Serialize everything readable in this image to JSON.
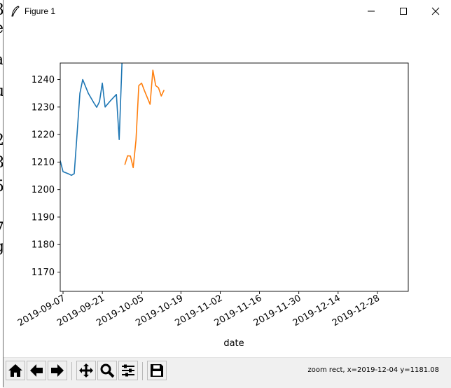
{
  "window": {
    "title": "Figure 1"
  },
  "toolbar": {
    "buttons": [
      {
        "icon": "home-icon"
      },
      {
        "icon": "back-arrow-icon"
      },
      {
        "icon": "forward-arrow-icon"
      },
      {
        "icon": "pan-icon"
      },
      {
        "icon": "zoom-icon"
      },
      {
        "icon": "subplots-config-icon"
      },
      {
        "icon": "save-icon"
      }
    ],
    "status": "zoom rect, x=2019-12-04 y=1181.08"
  },
  "chart_data": {
    "type": "line",
    "title": "",
    "xlabel": "date",
    "ylabel": "",
    "x_ticks": [
      "2019-09-07",
      "2019-09-21",
      "2019-10-05",
      "2019-10-19",
      "2019-11-02",
      "2019-11-16",
      "2019-11-30",
      "2019-12-14",
      "2019-12-28"
    ],
    "y_ticks": [
      1170,
      1180,
      1190,
      1200,
      1210,
      1220,
      1230,
      1240
    ],
    "xlim": [
      "2019-09-06",
      "2020-01-08"
    ],
    "ylim": [
      1163,
      1246
    ],
    "grid": false,
    "series": [
      {
        "color": "#1f77b4",
        "points": [
          [
            "2019-09-06",
            1210.5
          ],
          [
            "2019-09-07",
            1206.5
          ],
          [
            "2019-09-09",
            1205.7
          ],
          [
            "2019-09-10",
            1205.2
          ],
          [
            "2019-09-11",
            1205.8
          ],
          [
            "2019-09-12",
            1220
          ],
          [
            "2019-09-13",
            1235
          ],
          [
            "2019-09-14",
            1240.0
          ],
          [
            "2019-09-16",
            1235
          ],
          [
            "2019-09-18",
            1231.5
          ],
          [
            "2019-09-19",
            1229.9
          ],
          [
            "2019-09-20",
            1232
          ],
          [
            "2019-09-21",
            1238.7
          ],
          [
            "2019-09-22",
            1230.0
          ],
          [
            "2019-09-24",
            1232.4
          ],
          [
            "2019-09-26",
            1234.6
          ],
          [
            "2019-09-27",
            1218.2
          ],
          [
            "2019-09-28",
            1246.0
          ]
        ]
      },
      {
        "color": "#ff7f0e",
        "points": [
          [
            "2019-09-29",
            1209.0
          ],
          [
            "2019-09-30",
            1212.3
          ],
          [
            "2019-10-01",
            1212.2
          ],
          [
            "2019-10-02",
            1208.0
          ],
          [
            "2019-10-03",
            1218.0
          ],
          [
            "2019-10-04",
            1237.8
          ],
          [
            "2019-10-05",
            1238.7
          ],
          [
            "2019-10-06",
            1236
          ],
          [
            "2019-10-08",
            1231.0
          ],
          [
            "2019-10-09",
            1243.4
          ],
          [
            "2019-10-10",
            1237.8
          ],
          [
            "2019-10-11",
            1237.0
          ],
          [
            "2019-10-12",
            1234.0
          ],
          [
            "2019-10-13",
            1236.2
          ]
        ]
      }
    ]
  }
}
